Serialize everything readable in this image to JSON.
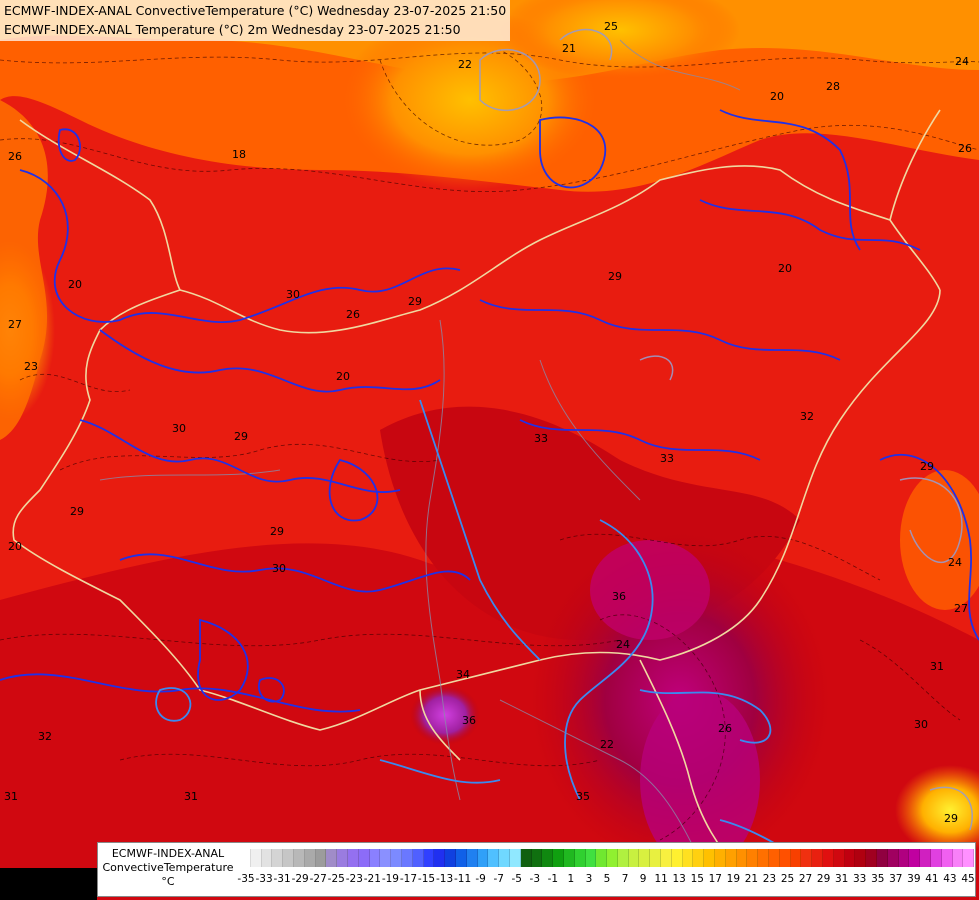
{
  "titles": {
    "line1": "ECMWF-INDEX-ANAL ConvectiveTemperature (°C) Wednesday 23-07-2025 21:50",
    "line2": "ECMWF-INDEX-ANAL Temperature (°C) 2m Wednesday 23-07-2025 21:50"
  },
  "legend": {
    "line1": "ECMWF-INDEX-ANAL",
    "line2": "ConvectiveTemperature",
    "unit": "°C",
    "ticks": [
      "-35",
      "-33",
      "-31",
      "-29",
      "-27",
      "-25",
      "-23",
      "-21",
      "-19",
      "-17",
      "-15",
      "-13",
      "-11",
      "-9",
      "-7",
      "-5",
      "-3",
      "-1",
      "1",
      "3",
      "5",
      "7",
      "9",
      "11",
      "13",
      "15",
      "17",
      "19",
      "21",
      "23",
      "25",
      "27",
      "29",
      "31",
      "33",
      "35",
      "37",
      "39",
      "41",
      "43",
      "45"
    ],
    "colors": [
      "#ffffff",
      "#f0f0f0",
      "#e2e2e2",
      "#d4d4d4",
      "#c6c6c6",
      "#b8b8b8",
      "#aaaaaa",
      "#9c9c9c",
      "#a08cc8",
      "#9a7ce0",
      "#9470f0",
      "#8c6cf8",
      "#8a80ff",
      "#8a90ff",
      "#7c8aff",
      "#6a78ff",
      "#5060ff",
      "#3040ff",
      "#2030f0",
      "#1040e0",
      "#1060e8",
      "#2080f0",
      "#30a0f8",
      "#50c0ff",
      "#70d8ff",
      "#90e8ff",
      "#106010",
      "#107010",
      "#108810",
      "#10a010",
      "#20b820",
      "#30d030",
      "#40e040",
      "#70e830",
      "#90f030",
      "#b0f040",
      "#c8f040",
      "#d8f040",
      "#e8f040",
      "#f8f040",
      "#fff030",
      "#ffe020",
      "#ffd010",
      "#ffc000",
      "#ffb000",
      "#ffa000",
      "#ff9000",
      "#ff8000",
      "#ff7000",
      "#ff6000",
      "#ff5000",
      "#f84000",
      "#f03010",
      "#e82010",
      "#e01010",
      "#d00810",
      "#c00010",
      "#b00010",
      "#a00020",
      "#900040",
      "#a00060",
      "#b00080",
      "#c000a0",
      "#d020c0",
      "#e040e0",
      "#f060f0",
      "#f880f8",
      "#ff90ff"
    ]
  },
  "map": {
    "contour_labels": [
      "26",
      "20",
      "23",
      "18",
      "28",
      "20",
      "26",
      "22",
      "21",
      "25",
      "24",
      "29",
      "30",
      "26",
      "29",
      "29",
      "20",
      "30",
      "20",
      "29",
      "33",
      "32",
      "33",
      "30",
      "29",
      "24",
      "27",
      "34",
      "36",
      "29",
      "20",
      "36",
      "31",
      "22",
      "35",
      "26",
      "24",
      "31",
      "30",
      "32",
      "31",
      "29",
      "27"
    ]
  }
}
